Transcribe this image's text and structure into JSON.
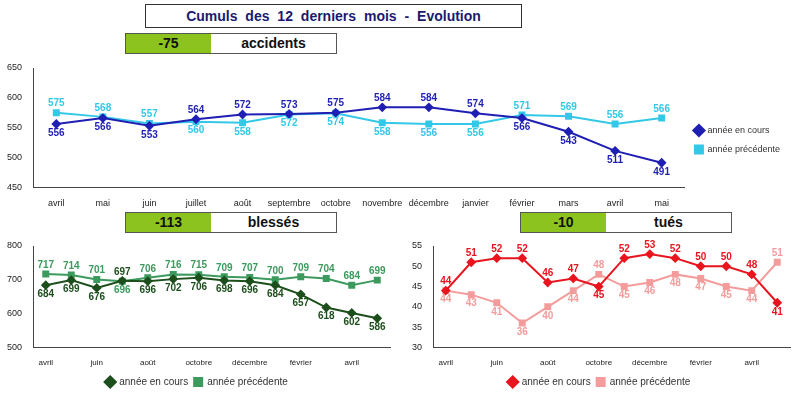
{
  "title": "Cumuls des 12 derniers mois - Evolution",
  "chart_data": [
    {
      "type": "line",
      "title": "accidents",
      "change": -75,
      "categories": [
        "avril",
        "mai",
        "juin",
        "juillet",
        "août",
        "septembre",
        "octobre",
        "novembre",
        "décembre",
        "janvier",
        "février",
        "mars",
        "avril",
        "mai"
      ],
      "series": [
        {
          "name": "année en cours",
          "color": "#1f1fb4",
          "marker": "diamond",
          "values": [
            556,
            566,
            553,
            564,
            572,
            573,
            575,
            584,
            584,
            574,
            566,
            543,
            511,
            491
          ]
        },
        {
          "name": "année précédente",
          "color": "#33c8e8",
          "marker": "square",
          "values": [
            575,
            568,
            557,
            560,
            558,
            572,
            574,
            558,
            556,
            556,
            571,
            569,
            556,
            566
          ]
        }
      ],
      "ylim": [
        450,
        650
      ],
      "yticks": [
        450,
        500,
        550,
        600,
        650
      ],
      "grid": false,
      "legend": "right",
      "data_labels": true
    },
    {
      "type": "line",
      "title": "blessés",
      "change": -113,
      "categories": [
        "avril",
        null,
        "juin",
        null,
        "août",
        null,
        "octobre",
        null,
        "décembre",
        null,
        "février",
        null,
        "avril",
        null
      ],
      "series": [
        {
          "name": "année en cours",
          "color": "#1d4f1d",
          "marker": "diamond",
          "values": [
            684,
            699,
            676,
            697,
            696,
            702,
            706,
            698,
            696,
            684,
            657,
            618,
            602,
            586
          ]
        },
        {
          "name": "année précédente",
          "color": "#3d9a5e",
          "marker": "square",
          "values": [
            717,
            714,
            701,
            696,
            706,
            716,
            715,
            709,
            707,
            700,
            709,
            704,
            684,
            699
          ]
        }
      ],
      "ylim": [
        500,
        800
      ],
      "yticks": [
        500,
        600,
        700,
        800
      ],
      "grid": false,
      "legend": "bottom",
      "data_labels": true
    },
    {
      "type": "line",
      "title": "tués",
      "change": -10,
      "categories": [
        "avril",
        null,
        "juin",
        null,
        "août",
        null,
        "octobre",
        null,
        "décembre",
        null,
        "février",
        null,
        "avril",
        null
      ],
      "series": [
        {
          "name": "année en cours",
          "color": "#e8141e",
          "marker": "diamond",
          "values": [
            44,
            51,
            52,
            52,
            46,
            47,
            45,
            52,
            53,
            52,
            50,
            50,
            48,
            41
          ]
        },
        {
          "name": "année précédente",
          "color": "#f49c9c",
          "marker": "square",
          "values": [
            44,
            43,
            41,
            36,
            40,
            44,
            48,
            45,
            46,
            48,
            47,
            45,
            44,
            51
          ]
        }
      ],
      "ylim": [
        30,
        55
      ],
      "yticks": [
        30,
        35,
        40,
        45,
        50,
        55
      ],
      "grid": false,
      "legend": "bottom",
      "data_labels": true
    }
  ]
}
